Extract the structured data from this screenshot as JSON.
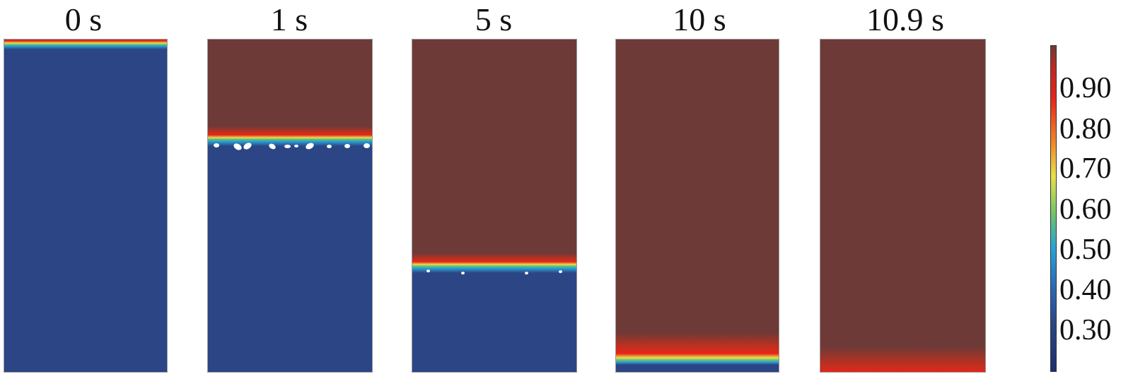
{
  "panels": [
    {
      "time_label": "0 s",
      "interface_level": 0.98
    },
    {
      "time_label": "1 s",
      "interface_level": 0.71
    },
    {
      "time_label": "5 s",
      "interface_level": 0.33
    },
    {
      "time_label": "10 s",
      "interface_level": 0.03
    },
    {
      "time_label": "10.9 s",
      "interface_level": 0.0
    }
  ],
  "colorbar": {
    "tick_labels": [
      "0.90",
      "0.80",
      "0.70",
      "0.60",
      "0.50",
      "0.40",
      "0.30"
    ],
    "min": 0.22,
    "max": 0.99
  },
  "colors": {
    "high": "#6e3a37",
    "low": "#2b4585",
    "interface_red": "#e8241c",
    "interface_yellow": "#e8e04a",
    "interface_green": "#6cc46a",
    "interface_cyan": "#2aa3d6"
  }
}
